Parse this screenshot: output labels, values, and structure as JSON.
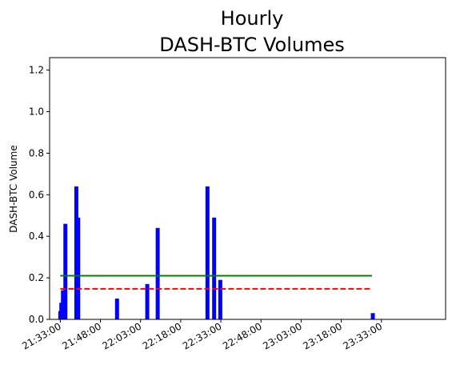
{
  "chart_data": {
    "type": "bar",
    "title": [
      "Hourly",
      "DASH-BTC Volumes"
    ],
    "xlabel": "",
    "ylabel": "DASH-BTC Volume",
    "ylim": [
      0,
      1.26
    ],
    "yticks": [
      0.0,
      0.2,
      0.4,
      0.6,
      0.8,
      1.0,
      1.2
    ],
    "ytick_labels": [
      "0.0",
      "0.2",
      "0.4",
      "0.6",
      "0.8",
      "1.0",
      "1.2"
    ],
    "xlim_minutes": [
      -4,
      144
    ],
    "xticks_minutes": [
      0,
      15,
      30,
      45,
      60,
      75,
      90,
      105,
      120
    ],
    "xtick_labels": [
      "21:33:00",
      "21:48:00",
      "22:03:00",
      "22:18:00",
      "22:33:00",
      "22:48:00",
      "23:03:00",
      "23:18:00",
      "23:33:00"
    ],
    "grid": false,
    "bar_color": "#0000ff",
    "bars": [
      {
        "time": "21:33",
        "minute": 0.0,
        "value": 0.04
      },
      {
        "time": "21:33",
        "minute": 0.4,
        "value": 0.08
      },
      {
        "time": "21:34",
        "minute": 1.0,
        "value": 0.14
      },
      {
        "time": "21:35",
        "minute": 1.9,
        "value": 0.46
      },
      {
        "time": "21:39",
        "minute": 6.0,
        "value": 0.64
      },
      {
        "time": "21:40",
        "minute": 6.7,
        "value": 0.49
      },
      {
        "time": "21:54",
        "minute": 21.2,
        "value": 0.1
      },
      {
        "time": "22:05",
        "minute": 32.5,
        "value": 0.17
      },
      {
        "time": "22:09",
        "minute": 36.4,
        "value": 0.44
      },
      {
        "time": "22:28",
        "minute": 55.0,
        "value": 0.64
      },
      {
        "time": "22:30",
        "minute": 57.5,
        "value": 0.49
      },
      {
        "time": "22:33",
        "minute": 59.8,
        "value": 0.19
      },
      {
        "time": "23:30",
        "minute": 116.8,
        "value": 0.03
      }
    ],
    "lines": [
      {
        "style": "solid",
        "color": "#008000",
        "value": 0.21,
        "x_range": [
          0,
          116.5
        ]
      },
      {
        "style": "dashed",
        "color": "#ff0000",
        "value": 0.147,
        "x_range": [
          0,
          116.5
        ]
      }
    ]
  }
}
